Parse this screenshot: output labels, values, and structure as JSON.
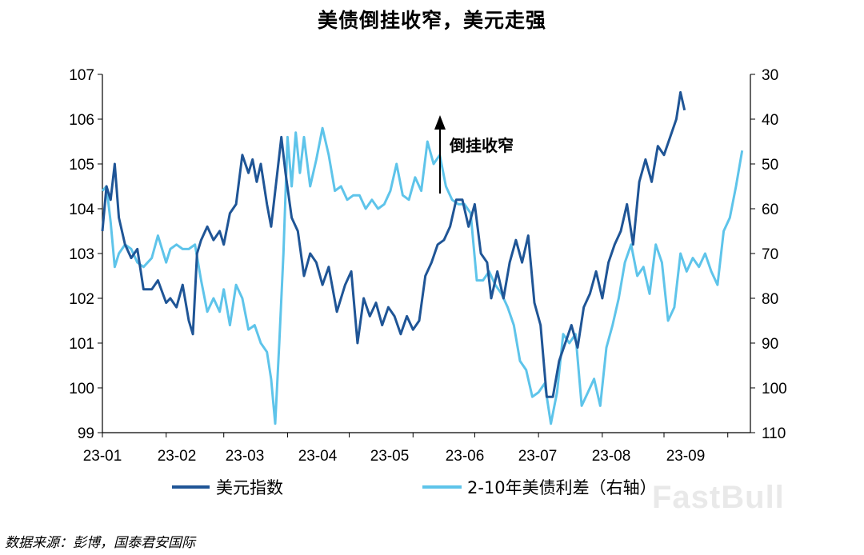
{
  "chart_data": {
    "type": "line",
    "title": "美债倒挂收窄，美元走强",
    "x_tick_labels": [
      "23-01",
      "23-02",
      "23-03",
      "23-04",
      "23-05",
      "23-06",
      "23-07",
      "23-08",
      "23-09"
    ],
    "y_left": {
      "lim": [
        99,
        107
      ],
      "ticks": [
        "99",
        "100",
        "101",
        "102",
        "103",
        "104",
        "105",
        "106",
        "107"
      ]
    },
    "y_right": {
      "lim": [
        110,
        30
      ],
      "inverted": true,
      "ticks": [
        "30",
        "40",
        "50",
        "60",
        "70",
        "80",
        "90",
        "100",
        "110"
      ]
    },
    "legend_position": "bottom",
    "series": [
      {
        "name": "美元指数",
        "axis": "left",
        "color": "#1f5596",
        "points": [
          [
            "2023-01-01",
            103.5
          ],
          [
            "2023-01-03",
            104.5
          ],
          [
            "2023-01-05",
            104.2
          ],
          [
            "2023-01-07",
            105.0
          ],
          [
            "2023-01-09",
            103.8
          ],
          [
            "2023-01-12",
            103.2
          ],
          [
            "2023-01-15",
            102.9
          ],
          [
            "2023-01-18",
            103.1
          ],
          [
            "2023-01-21",
            102.2
          ],
          [
            "2023-01-25",
            102.2
          ],
          [
            "2023-01-28",
            102.4
          ],
          [
            "2023-02-01",
            101.9
          ],
          [
            "2023-02-03",
            102.0
          ],
          [
            "2023-02-06",
            101.8
          ],
          [
            "2023-02-09",
            102.3
          ],
          [
            "2023-02-12",
            101.5
          ],
          [
            "2023-02-14",
            101.2
          ],
          [
            "2023-02-16",
            103.0
          ],
          [
            "2023-02-18",
            103.3
          ],
          [
            "2023-02-21",
            103.6
          ],
          [
            "2023-02-24",
            103.3
          ],
          [
            "2023-02-27",
            103.5
          ],
          [
            "2023-03-01",
            103.2
          ],
          [
            "2023-03-04",
            103.9
          ],
          [
            "2023-03-07",
            104.1
          ],
          [
            "2023-03-10",
            105.2
          ],
          [
            "2023-03-13",
            104.8
          ],
          [
            "2023-03-15",
            105.1
          ],
          [
            "2023-03-17",
            104.6
          ],
          [
            "2023-03-19",
            105.0
          ],
          [
            "2023-03-22",
            104.1
          ],
          [
            "2023-03-24",
            103.6
          ],
          [
            "2023-03-27",
            104.8
          ],
          [
            "2023-03-29",
            105.6
          ],
          [
            "2023-03-31",
            104.8
          ],
          [
            "2023-04-03",
            103.8
          ],
          [
            "2023-04-06",
            103.5
          ],
          [
            "2023-04-09",
            102.5
          ],
          [
            "2023-04-12",
            103.0
          ],
          [
            "2023-04-15",
            102.8
          ],
          [
            "2023-04-18",
            102.3
          ],
          [
            "2023-04-21",
            102.7
          ],
          [
            "2023-04-25",
            101.7
          ],
          [
            "2023-04-29",
            102.3
          ],
          [
            "2023-05-02",
            102.6
          ],
          [
            "2023-05-05",
            101.0
          ],
          [
            "2023-05-08",
            102.0
          ],
          [
            "2023-05-11",
            101.6
          ],
          [
            "2023-05-14",
            101.9
          ],
          [
            "2023-05-17",
            101.4
          ],
          [
            "2023-05-20",
            101.8
          ],
          [
            "2023-05-23",
            101.6
          ],
          [
            "2023-05-26",
            101.2
          ],
          [
            "2023-05-29",
            101.6
          ],
          [
            "2023-06-01",
            101.3
          ],
          [
            "2023-06-04",
            101.5
          ],
          [
            "2023-06-07",
            102.5
          ],
          [
            "2023-06-10",
            102.8
          ],
          [
            "2023-06-13",
            103.2
          ],
          [
            "2023-06-16",
            103.3
          ],
          [
            "2023-06-19",
            103.6
          ],
          [
            "2023-06-22",
            104.2
          ],
          [
            "2023-06-25",
            104.2
          ],
          [
            "2023-06-28",
            103.6
          ],
          [
            "2023-07-01",
            104.1
          ],
          [
            "2023-07-04",
            103.0
          ],
          [
            "2023-07-07",
            102.8
          ],
          [
            "2023-07-09",
            102.0
          ],
          [
            "2023-07-12",
            102.6
          ],
          [
            "2023-07-15",
            102.0
          ],
          [
            "2023-07-18",
            102.8
          ],
          [
            "2023-07-21",
            103.3
          ],
          [
            "2023-07-24",
            102.8
          ],
          [
            "2023-07-27",
            103.4
          ],
          [
            "2023-07-30",
            101.9
          ],
          [
            "2023-08-02",
            101.4
          ],
          [
            "2023-08-05",
            99.8
          ],
          [
            "2023-08-08",
            99.8
          ],
          [
            "2023-08-11",
            100.6
          ],
          [
            "2023-08-14",
            101.0
          ],
          [
            "2023-08-17",
            101.4
          ],
          [
            "2023-08-20",
            100.9
          ],
          [
            "2023-08-23",
            101.8
          ],
          [
            "2023-08-26",
            102.1
          ],
          [
            "2023-08-29",
            102.6
          ],
          [
            "2023-09-01",
            102.0
          ],
          [
            "2023-09-04",
            102.8
          ],
          [
            "2023-09-07",
            103.2
          ],
          [
            "2023-09-10",
            103.5
          ],
          [
            "2023-09-13",
            104.1
          ],
          [
            "2023-09-16",
            103.2
          ],
          [
            "2023-09-19",
            104.6
          ],
          [
            "2023-09-22",
            105.1
          ],
          [
            "2023-09-25",
            104.6
          ],
          [
            "2023-09-28",
            105.4
          ],
          [
            "2023-10-01",
            105.2
          ],
          [
            "2023-10-04",
            105.6
          ],
          [
            "2023-10-07",
            106.0
          ],
          [
            "2023-10-09",
            106.6
          ],
          [
            "2023-10-11",
            106.2
          ]
        ]
      },
      {
        "name": "2-10年美债利差（右轴）",
        "axis": "right",
        "color": "#5ec4ea",
        "points": [
          [
            "2023-01-01",
            56
          ],
          [
            "2023-01-03",
            55
          ],
          [
            "2023-01-05",
            63
          ],
          [
            "2023-01-07",
            73
          ],
          [
            "2023-01-09",
            70
          ],
          [
            "2023-01-12",
            68
          ],
          [
            "2023-01-15",
            69
          ],
          [
            "2023-01-18",
            72
          ],
          [
            "2023-01-21",
            73
          ],
          [
            "2023-01-25",
            71
          ],
          [
            "2023-01-28",
            66
          ],
          [
            "2023-02-01",
            72
          ],
          [
            "2023-02-03",
            69
          ],
          [
            "2023-02-06",
            68
          ],
          [
            "2023-02-09",
            69
          ],
          [
            "2023-02-12",
            69
          ],
          [
            "2023-02-15",
            68
          ],
          [
            "2023-02-18",
            76
          ],
          [
            "2023-02-21",
            83
          ],
          [
            "2023-02-24",
            80
          ],
          [
            "2023-02-27",
            83
          ],
          [
            "2023-03-01",
            78
          ],
          [
            "2023-03-04",
            86
          ],
          [
            "2023-03-07",
            77
          ],
          [
            "2023-03-10",
            80
          ],
          [
            "2023-03-13",
            87
          ],
          [
            "2023-03-16",
            86
          ],
          [
            "2023-03-19",
            90
          ],
          [
            "2023-03-22",
            92
          ],
          [
            "2023-03-24",
            98
          ],
          [
            "2023-03-26",
            108
          ],
          [
            "2023-03-28",
            90
          ],
          [
            "2023-03-30",
            70
          ],
          [
            "2023-04-01",
            44
          ],
          [
            "2023-04-03",
            55
          ],
          [
            "2023-04-05",
            43
          ],
          [
            "2023-04-07",
            52
          ],
          [
            "2023-04-09",
            44
          ],
          [
            "2023-04-12",
            55
          ],
          [
            "2023-04-15",
            49
          ],
          [
            "2023-04-18",
            42
          ],
          [
            "2023-04-21",
            48
          ],
          [
            "2023-04-24",
            56
          ],
          [
            "2023-04-27",
            55
          ],
          [
            "2023-04-30",
            58
          ],
          [
            "2023-05-03",
            57
          ],
          [
            "2023-05-06",
            57
          ],
          [
            "2023-05-09",
            60
          ],
          [
            "2023-05-12",
            58
          ],
          [
            "2023-05-15",
            60
          ],
          [
            "2023-05-18",
            59
          ],
          [
            "2023-05-21",
            56
          ],
          [
            "2023-05-24",
            50
          ],
          [
            "2023-05-27",
            57
          ],
          [
            "2023-05-30",
            58
          ],
          [
            "2023-06-02",
            53
          ],
          [
            "2023-06-05",
            56
          ],
          [
            "2023-06-08",
            45
          ],
          [
            "2023-06-11",
            50
          ],
          [
            "2023-06-14",
            48
          ],
          [
            "2023-06-17",
            55
          ],
          [
            "2023-06-20",
            58
          ],
          [
            "2023-06-23",
            59
          ],
          [
            "2023-06-26",
            59
          ],
          [
            "2023-06-29",
            61
          ],
          [
            "2023-07-02",
            76
          ],
          [
            "2023-07-05",
            76
          ],
          [
            "2023-07-08",
            74
          ],
          [
            "2023-07-11",
            77
          ],
          [
            "2023-07-14",
            79
          ],
          [
            "2023-07-17",
            82
          ],
          [
            "2023-07-20",
            86
          ],
          [
            "2023-07-23",
            94
          ],
          [
            "2023-07-26",
            96
          ],
          [
            "2023-07-29",
            102
          ],
          [
            "2023-08-01",
            101
          ],
          [
            "2023-08-04",
            99
          ],
          [
            "2023-08-07",
            108
          ],
          [
            "2023-08-10",
            101
          ],
          [
            "2023-08-13",
            88
          ],
          [
            "2023-08-16",
            90
          ],
          [
            "2023-08-19",
            88
          ],
          [
            "2023-08-22",
            104
          ],
          [
            "2023-08-25",
            101
          ],
          [
            "2023-08-28",
            98
          ],
          [
            "2023-08-31",
            104
          ],
          [
            "2023-09-03",
            91
          ],
          [
            "2023-09-06",
            86
          ],
          [
            "2023-09-09",
            80
          ],
          [
            "2023-09-12",
            72
          ],
          [
            "2023-09-15",
            68
          ],
          [
            "2023-09-18",
            75
          ],
          [
            "2023-09-21",
            73
          ],
          [
            "2023-09-24",
            79
          ],
          [
            "2023-09-27",
            68
          ],
          [
            "2023-09-30",
            72
          ],
          [
            "2023-10-03",
            85
          ],
          [
            "2023-10-06",
            82
          ],
          [
            "2023-10-09",
            70
          ],
          [
            "2023-10-12",
            74
          ],
          [
            "2023-10-15",
            71
          ],
          [
            "2023-10-18",
            73
          ],
          [
            "2023-10-21",
            70
          ],
          [
            "2023-10-24",
            74
          ],
          [
            "2023-10-27",
            77
          ],
          [
            "2023-10-30",
            65
          ],
          [
            "2023-11-02",
            62
          ],
          [
            "2023-11-05",
            55
          ],
          [
            "2023-11-08",
            47
          ]
        ]
      }
    ],
    "annotations": [
      {
        "text": "倒挂收窄",
        "type": "arrow-up"
      }
    ]
  },
  "source_note": "数据来源：彭博，国泰君安国际",
  "watermark": "FastBull"
}
